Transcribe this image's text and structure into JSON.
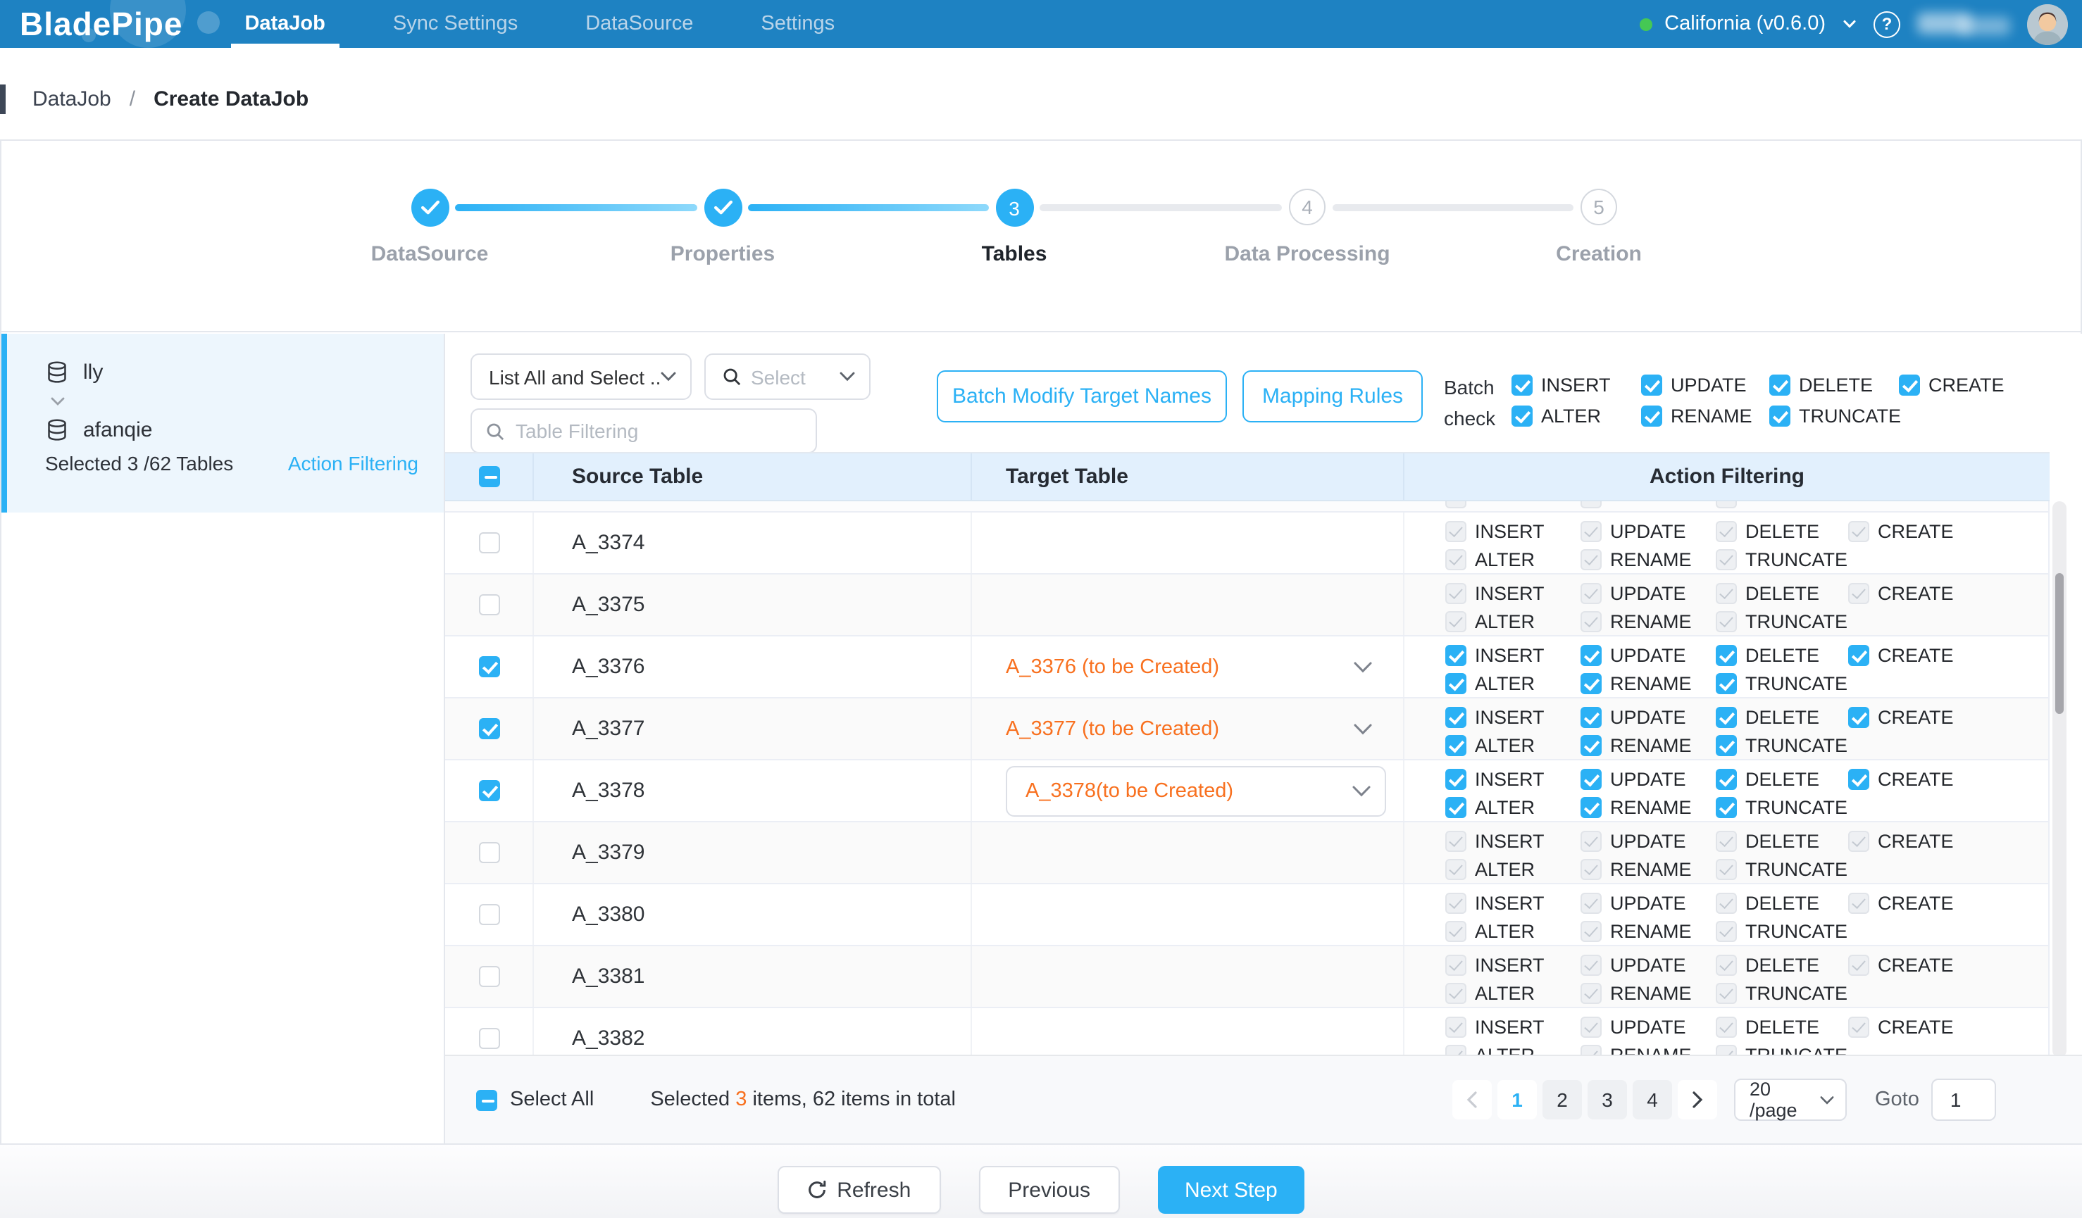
{
  "nav": {
    "logo": "BladePipe",
    "tabs": [
      {
        "label": "DataJob",
        "active": true
      },
      {
        "label": "Sync Settings",
        "active": false
      },
      {
        "label": "DataSource",
        "active": false
      },
      {
        "label": "Settings",
        "active": false
      }
    ],
    "region_selector": "California (v0.6.0)",
    "help_glyph": "?"
  },
  "breadcrumb": {
    "parent": "DataJob",
    "separator": "/",
    "current": "Create DataJob"
  },
  "stepper": {
    "steps": [
      {
        "label": "DataSource",
        "state": "done"
      },
      {
        "label": "Properties",
        "state": "done"
      },
      {
        "label": "Tables",
        "state": "active",
        "number": "3"
      },
      {
        "label": "Data Processing",
        "state": "pending",
        "number": "4"
      },
      {
        "label": "Creation",
        "state": "pending",
        "number": "5"
      }
    ]
  },
  "sidebar": {
    "source_schema": "lly",
    "target_schema": "afanqie",
    "selection_summary": "Selected 3 /62 Tables",
    "action_filtering_link": "Action Filtering"
  },
  "toolbar": {
    "list_mode_value": "List All and Select ...",
    "select_placeholder": "Select",
    "filter_placeholder": "Table Filtering",
    "batch_modify_button": "Batch Modify Target Names",
    "mapping_rules_button": "Mapping Rules",
    "batch_check_line1": "Batch",
    "batch_check_line2": "check",
    "batch_actions_row1": [
      "INSERT",
      "UPDATE",
      "DELETE",
      "CREATE"
    ],
    "batch_actions_row2": [
      "ALTER",
      "RENAME",
      "TRUNCATE"
    ]
  },
  "table": {
    "columns": {
      "source": "Source Table",
      "target": "Target Table",
      "action": "Action Filtering"
    },
    "actions_row1": [
      "INSERT",
      "UPDATE",
      "DELETE",
      "CREATE"
    ],
    "actions_row2": [
      "ALTER",
      "RENAME",
      "TRUNCATE"
    ],
    "rows": [
      {
        "source": "A_3374",
        "target": "",
        "selected": false,
        "target_style": "none"
      },
      {
        "source": "A_3375",
        "target": "",
        "selected": false,
        "target_style": "none"
      },
      {
        "source": "A_3376",
        "target": "A_3376 (to be Created)",
        "selected": true,
        "target_style": "plain"
      },
      {
        "source": "A_3377",
        "target": "A_3377 (to be Created)",
        "selected": true,
        "target_style": "plain"
      },
      {
        "source": "A_3378",
        "target": "A_3378(to be Created)",
        "selected": true,
        "target_style": "boxed"
      },
      {
        "source": "A_3379",
        "target": "",
        "selected": false,
        "target_style": "none"
      },
      {
        "source": "A_3380",
        "target": "",
        "selected": false,
        "target_style": "none"
      },
      {
        "source": "A_3381",
        "target": "",
        "selected": false,
        "target_style": "none"
      },
      {
        "source": "A_3382",
        "target": "",
        "selected": false,
        "target_style": "none"
      }
    ]
  },
  "footer": {
    "select_all_label": "Select All",
    "selected_prefix": "Selected ",
    "selected_count": "3",
    "selected_suffix": " items, 62 items in total",
    "pages": [
      "1",
      "2",
      "3",
      "4"
    ],
    "active_page": "1",
    "page_size": "20 /page",
    "goto_label": "Goto",
    "goto_value": "1"
  },
  "actions_bar": {
    "refresh": "Refresh",
    "previous": "Previous",
    "next": "Next Step"
  },
  "colors": {
    "accent": "#2bb1f5",
    "nav_blue": "#1e82c2",
    "orange": "#f8701f",
    "status_green": "#45c854",
    "header_bg": "#e2f0fd",
    "sidebar_selected_bg": "#edf6fd"
  }
}
